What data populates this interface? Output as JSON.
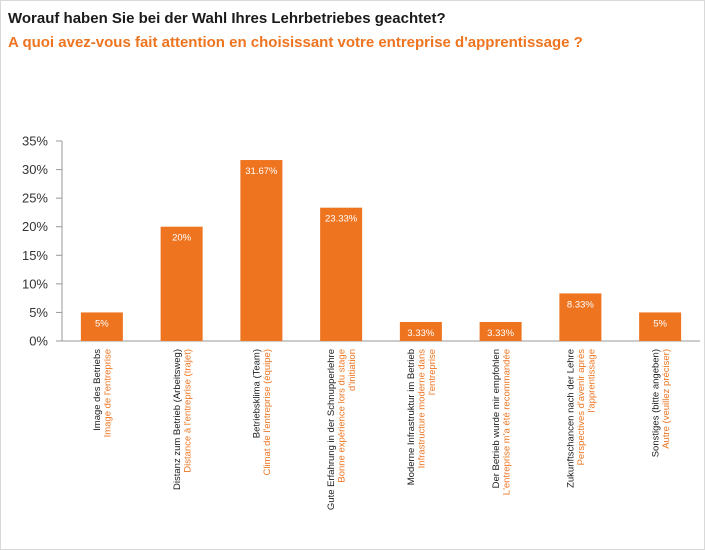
{
  "title_de": "Worauf haben Sie bei der Wahl Ihres Lehrbetriebes geachtet?",
  "title_fr": "A quoi avez-vous fait attention en choisissant votre entreprise d'apprentissage ?",
  "colors": {
    "bar": "#ee7420",
    "title_primary": "#1a1a1a",
    "title_secondary": "#ee7420",
    "axis": "#999999",
    "label_de": "#1a1a1a",
    "label_fr": "#ee7420"
  },
  "chart_data": {
    "type": "bar",
    "ylim": [
      0,
      35
    ],
    "yticks": [
      0,
      5,
      10,
      15,
      20,
      25,
      30,
      35
    ],
    "ytick_labels": [
      "0%",
      "5%",
      "10%",
      "15%",
      "20%",
      "25%",
      "30%",
      "35%"
    ],
    "grid": false,
    "values": [
      5,
      20,
      31.67,
      23.33,
      3.33,
      3.33,
      8.33,
      5
    ],
    "value_labels": [
      "5%",
      "20%",
      "31.67%",
      "23.33%",
      "3.33%",
      "3.33%",
      "8.33%",
      "5%"
    ],
    "categories": [
      {
        "de": [
          "Image des Betriebs"
        ],
        "fr": [
          "Image de l'entreprise"
        ]
      },
      {
        "de": [
          "Distanz zum Betrieb (Arbeitsweg)"
        ],
        "fr": [
          "Distance à l'entreprise (trajet)"
        ]
      },
      {
        "de": [
          "Betriebsklima (Team)"
        ],
        "fr": [
          "Climat de l'entreprise (équipe)"
        ]
      },
      {
        "de": [
          "Gute Erfahrung in der Schnupperlehre"
        ],
        "fr": [
          "Bonne expérience lors du stage",
          "d'initiation"
        ]
      },
      {
        "de": [
          "Moderne Infrastruktur im Betrieb"
        ],
        "fr": [
          "Infrastructure moderne dans",
          "l'entreprise"
        ]
      },
      {
        "de": [
          "Der Betrieb wurde mir empfohlen"
        ],
        "fr": [
          "L'entreprise m'a été recommandée"
        ]
      },
      {
        "de": [
          "Zukunftschancen nach der Lehre"
        ],
        "fr": [
          "Perspectives d'avenir après",
          "l'apprentissage"
        ]
      },
      {
        "de": [
          "Sonstiges (bitte angeben)"
        ],
        "fr": [
          "Autre (veuillez préciser)"
        ]
      }
    ]
  }
}
